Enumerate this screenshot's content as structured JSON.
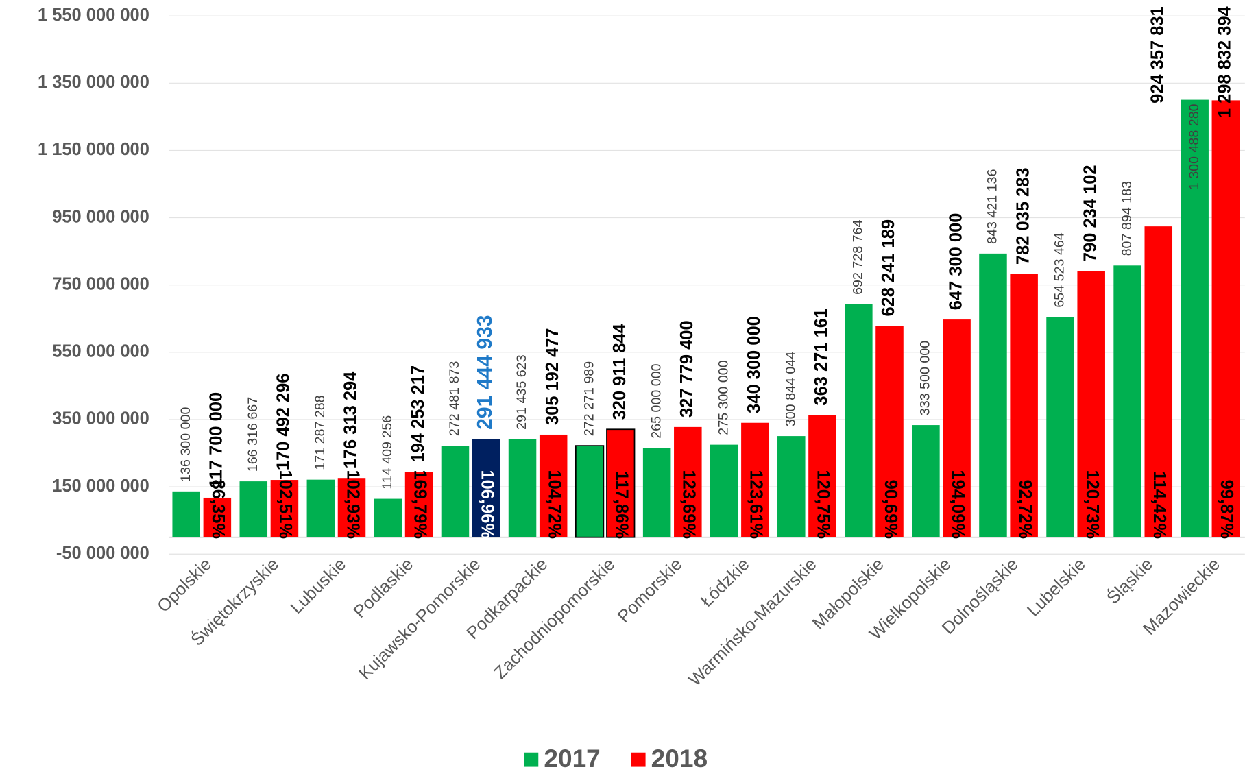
{
  "chart_data": {
    "type": "bar",
    "categories": [
      "Opolskie",
      "Świętokrzyskie",
      "Lubuskie",
      "Podlaskie",
      "Kujawsko-Pomorskie",
      "Podkarpackie",
      "Zachodniopomorskie",
      "Pomorskie",
      "Łódzkie",
      "Warmińsko-Mazurskie",
      "Małopolskie",
      "Wielkopolskie",
      "Dolnośląskie",
      "Lubelskie",
      "Śląskie",
      "Mazowieckie"
    ],
    "series": [
      {
        "name": "2017",
        "color": "#00b050",
        "values": [
          136300000,
          166316667,
          171287288,
          114409256,
          272481873,
          291435623,
          272271989,
          265000000,
          275300000,
          300844044,
          692728764,
          333500000,
          843421136,
          654523464,
          807894183,
          1300488280
        ],
        "value_labels": [
          "136 300 000",
          "166 316 667",
          "171 287 288",
          "114 409 256",
          "272 481 873",
          "291 435 623",
          "272 271 989",
          "265 000 000",
          "275 300 000",
          "300 844 044",
          "692 728 764",
          "333 500 000",
          "843 421 136",
          "654 523 464",
          "807 894 183",
          "1 300 488 280"
        ]
      },
      {
        "name": "2018",
        "color": "#ff0000",
        "values": [
          117700000,
          170492296,
          176313294,
          194253217,
          291444933,
          305192477,
          320911844,
          327779400,
          340300000,
          363271161,
          628241189,
          647300000,
          782035283,
          790234102,
          924357831,
          1298832394
        ],
        "value_labels": [
          "117 700 000",
          "170 492 296",
          "176 313 294",
          "194 253 217",
          "291 444 933",
          "305 192 477",
          "320 911 844",
          "327 779 400",
          "340 300 000",
          "363 271 161",
          "628 241 189",
          "647 300 000",
          "782 035 283",
          "790 234 102",
          "924 357 831",
          "1 298 832 394"
        ]
      }
    ],
    "percent_labels": [
      "86,35%",
      "102,51%",
      "102,93%",
      "169,79%",
      "106,96%",
      "104,72%",
      "117,86%",
      "123,69%",
      "123,61%",
      "120,75%",
      "90,69%",
      "194,09%",
      "92,72%",
      "120,73%",
      "114,42%",
      "99,87%"
    ],
    "highlight_index": 4,
    "highlight_color": "#002060",
    "highlight_label_color": "#1f7ac8",
    "outlined_index": 6,
    "ylim": [
      -50000000,
      1550000000
    ],
    "yticks": [
      {
        "value": -50000000,
        "label": "-50 000 000"
      },
      {
        "value": 150000000,
        "label": "150 000 000"
      },
      {
        "value": 350000000,
        "label": "350 000 000"
      },
      {
        "value": 550000000,
        "label": "550 000 000"
      },
      {
        "value": 750000000,
        "label": "750 000 000"
      },
      {
        "value": 950000000,
        "label": "950 000 000"
      },
      {
        "value": 1150000000,
        "label": "1 150 000 000"
      },
      {
        "value": 1350000000,
        "label": "1 350 000 000"
      },
      {
        "value": 1550000000,
        "label": "1 550 000 000"
      }
    ],
    "grid": true,
    "legend": "bottom"
  }
}
